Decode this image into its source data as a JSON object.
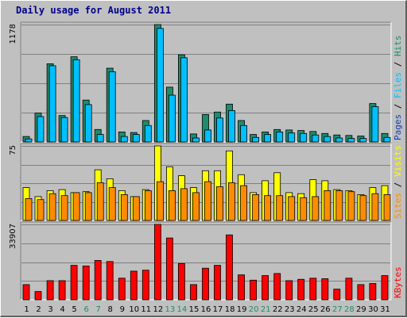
{
  "chart_data": {
    "type": "bar",
    "title": "Daily usage for August 2011",
    "categories": [
      "1",
      "2",
      "3",
      "4",
      "5",
      "6",
      "7",
      "8",
      "9",
      "10",
      "11",
      "12",
      "13",
      "14",
      "15",
      "16",
      "17",
      "18",
      "19",
      "20",
      "21",
      "22",
      "23",
      "24",
      "25",
      "26",
      "27",
      "28",
      "29",
      "30",
      "31"
    ],
    "weekend_days": [
      "6",
      "7",
      "13",
      "14",
      "20",
      "21",
      "27",
      "28"
    ],
    "panels": [
      {
        "id": "hits_files_pages",
        "ymax": 1178,
        "ymax_label": "1178",
        "side_label": [
          "Pages",
          "Files",
          "Hits"
        ],
        "side_separator": " / ",
        "series": [
          {
            "name": "Hits",
            "color": "#1e8c6e",
            "values": [
              55,
              290,
              785,
              265,
              855,
              420,
              125,
              740,
              100,
              95,
              215,
              1178,
              550,
              875,
              80,
              275,
              300,
              380,
              215,
              75,
              100,
              125,
              120,
              115,
              105,
              85,
              70,
              65,
              60,
              385,
              85
            ]
          },
          {
            "name": "Files",
            "color": "#00bfff",
            "values": [
              30,
              255,
              765,
              245,
              825,
              375,
              75,
              705,
              55,
              75,
              165,
              1140,
              470,
              845,
              40,
              120,
              240,
              315,
              165,
              45,
              75,
              100,
              90,
              85,
              70,
              55,
              40,
              35,
              35,
              355,
              45
            ]
          },
          {
            "name": "Pages",
            "color": "#1a3cb4",
            "values": []
          }
        ]
      },
      {
        "id": "visits_sites",
        "ymax": 75,
        "ymax_label": "75",
        "side_label": [
          "Sites",
          "Visits"
        ],
        "side_separator": " / ",
        "series": [
          {
            "name": "Visits",
            "color": "#ffff00",
            "values": [
              33,
              24,
              30,
              31,
              28,
              29,
              51,
              42,
              30,
              24,
              31,
              75,
              54,
              45,
              33,
              50,
              50,
              70,
              46,
              28,
              40,
              48,
              28,
              27,
              41,
              40,
              31,
              30,
              26,
              33,
              35
            ]
          },
          {
            "name": "Sites",
            "color": "#ff8c00",
            "values": [
              22,
              21,
              27,
              25,
              28,
              28,
              38,
              33,
              26,
              24,
              30,
              39,
              30,
              32,
              28,
              39,
              34,
              38,
              35,
              26,
              25,
              25,
              24,
              23,
              24,
              30,
              30,
              29,
              25,
              27,
              26
            ]
          }
        ]
      },
      {
        "id": "kbytes",
        "ymax": 33907,
        "ymax_label": "33907",
        "side_label": [
          "KBytes"
        ],
        "side_separator": "",
        "series": [
          {
            "name": "KBytes",
            "color": "#ff0000",
            "values": [
              6800,
              3700,
              8600,
              8600,
              15500,
              15200,
              17700,
              17200,
              9700,
              12900,
              13300,
              33907,
              27800,
              16300,
              6800,
              14200,
              15500,
              29200,
              11200,
              8800,
              10900,
              11800,
              8600,
              9200,
              9700,
              9500,
              4800,
              9700,
              6800,
              7300,
              10900
            ]
          }
        ]
      }
    ]
  }
}
